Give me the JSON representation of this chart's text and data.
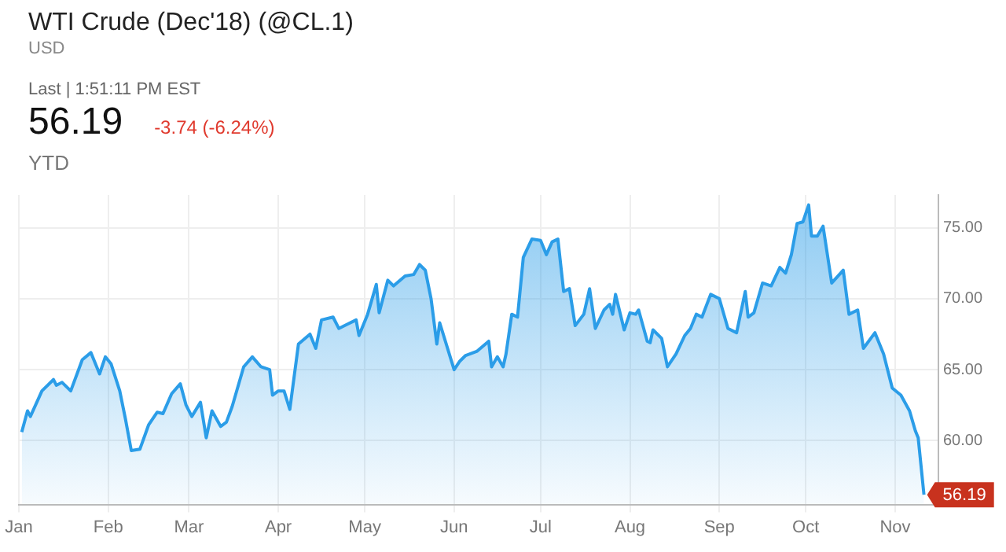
{
  "chart_data": {
    "type": "area",
    "title": "WTI Crude (Dec'18) (@CL.1)",
    "subtitle": "USD",
    "annotations": [
      "Last | 1:51:11 PM EST",
      "56.19",
      "-3.74 (-6.24%)",
      "YTD",
      {
        "text": "56.19",
        "x": "--11-11",
        "y": 56.19
      }
    ],
    "x": [
      "--01-02",
      "--01-04",
      "--01-05",
      "--01-09",
      "--01-13",
      "--01-14",
      "--01-16",
      "--01-19",
      "--01-23",
      "--01-26",
      "--01-29",
      "--01-31",
      "--02-02",
      "--02-05",
      "--02-07",
      "--02-09",
      "--02-12",
      "--02-15",
      "--02-18",
      "--02-20",
      "--02-23",
      "--02-26",
      "--02-28",
      "--03-02",
      "--03-05",
      "--03-07",
      "--03-09",
      "--03-12",
      "--03-14",
      "--03-16",
      "--03-20",
      "--03-23",
      "--03-26",
      "--03-29",
      "--03-30",
      "--04-01",
      "--04-03",
      "--04-05",
      "--04-08",
      "--04-12",
      "--04-14",
      "--04-16",
      "--04-20",
      "--04-22",
      "--04-25",
      "--04-28",
      "--04-29",
      "--05-02",
      "--05-05",
      "--05-06",
      "--05-09",
      "--05-11",
      "--05-15",
      "--05-18",
      "--05-20",
      "--05-22",
      "--05-24",
      "--05-26",
      "--05-27",
      "--06-01",
      "--06-03",
      "--06-05",
      "--06-09",
      "--06-13",
      "--06-14",
      "--06-16",
      "--06-18",
      "--06-19",
      "--06-21",
      "--06-23",
      "--06-25",
      "--06-28",
      "--07-01",
      "--07-03",
      "--07-05",
      "--07-07",
      "--07-09",
      "--07-11",
      "--07-13",
      "--07-16",
      "--07-18",
      "--07-20",
      "--07-23",
      "--07-25",
      "--07-26",
      "--07-27",
      "--07-30",
      "--08-01",
      "--08-03",
      "--08-04",
      "--08-07",
      "--08-08",
      "--08-09",
      "--08-12",
      "--08-14",
      "--08-17",
      "--08-20",
      "--08-22",
      "--08-24",
      "--08-26",
      "--08-29",
      "--09-01",
      "--09-04",
      "--09-07",
      "--09-10",
      "--09-11",
      "--09-13",
      "--09-16",
      "--09-19",
      "--09-22",
      "--09-24",
      "--09-26",
      "--09-28",
      "--09-30",
      "--10-02",
      "--10-03",
      "--10-05",
      "--10-07",
      "--10-10",
      "--10-14",
      "--10-16",
      "--10-19",
      "--10-21",
      "--10-25",
      "--10-28",
      "--10-31",
      "--11-03",
      "--11-06",
      "--11-08",
      "--11-09",
      "--11-11"
    ],
    "series": [
      {
        "color": "#2b9de8",
        "values": [
          60.6,
          62.1,
          61.7,
          63.5,
          64.3,
          63.9,
          64.1,
          63.5,
          65.7,
          66.2,
          64.7,
          65.9,
          65.4,
          63.5,
          61.5,
          59.3,
          59.4,
          61.1,
          62.0,
          61.9,
          63.3,
          64.0,
          62.5,
          61.7,
          62.7,
          60.2,
          62.1,
          61.0,
          61.3,
          62.4,
          65.2,
          65.9,
          65.2,
          65.0,
          63.2,
          63.5,
          63.5,
          62.2,
          66.8,
          67.5,
          66.5,
          68.5,
          68.7,
          67.9,
          68.2,
          68.5,
          67.4,
          68.9,
          71.0,
          69.0,
          71.3,
          70.9,
          71.6,
          71.7,
          72.4,
          72.0,
          70.0,
          66.8,
          68.3,
          65.0,
          65.6,
          66.0,
          66.3,
          67.0,
          65.2,
          65.9,
          65.2,
          66.1,
          68.9,
          68.7,
          72.9,
          74.2,
          74.1,
          73.1,
          74.0,
          74.2,
          70.5,
          70.7,
          68.1,
          68.9,
          70.7,
          67.9,
          69.2,
          69.6,
          68.9,
          70.3,
          67.8,
          69.0,
          68.9,
          69.2,
          67.0,
          66.9,
          67.8,
          67.2,
          65.2,
          66.1,
          67.4,
          67.9,
          68.9,
          68.7,
          70.3,
          70.0,
          67.9,
          67.6,
          70.5,
          68.7,
          69.0,
          71.1,
          70.9,
          72.2,
          71.8,
          73.1,
          75.3,
          75.4,
          76.6,
          74.4,
          74.4,
          75.1,
          71.1,
          72.0,
          68.9,
          69.2,
          66.5,
          67.6,
          66.1,
          63.7,
          63.2,
          62.1,
          60.7,
          60.2,
          56.19
        ]
      }
    ],
    "xlim": [
      "--01-01",
      "--11-16"
    ],
    "xticks": [
      {
        "value": "--01-01",
        "label": "Jan"
      },
      {
        "value": "--02-01",
        "label": "Feb"
      },
      {
        "value": "--03-01",
        "label": "Mar"
      },
      {
        "value": "--04-01",
        "label": "Apr"
      },
      {
        "value": "--05-01",
        "label": "May"
      },
      {
        "value": "--06-01",
        "label": "Jun"
      },
      {
        "value": "--07-01",
        "label": "Jul"
      },
      {
        "value": "--08-01",
        "label": "Aug"
      },
      {
        "value": "--09-01",
        "label": "Sep"
      },
      {
        "value": "--10-01",
        "label": "Oct"
      },
      {
        "value": "--11-01",
        "label": "Nov"
      }
    ],
    "ylim": [
      55.5,
      77.3
    ],
    "yticks": [
      {
        "value": 60,
        "label": "60.00"
      },
      {
        "value": 65,
        "label": "65.00"
      },
      {
        "value": 70,
        "label": "70.00"
      },
      {
        "value": 75,
        "label": "75.00"
      }
    ],
    "grid": true,
    "legend": false,
    "marker": "none",
    "line_style": "solid"
  }
}
